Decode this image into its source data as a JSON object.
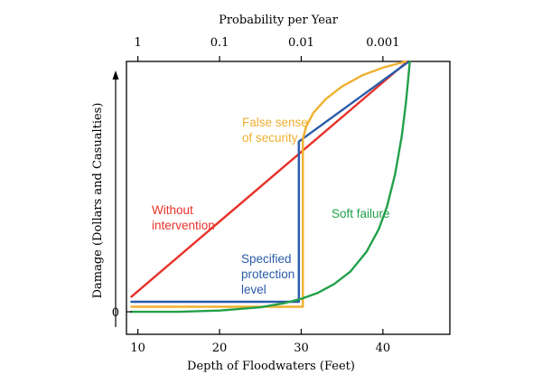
{
  "chart_data": {
    "type": "line",
    "title": "",
    "top_axis": {
      "label": "Probability per Year",
      "ticks": [
        {
          "label": "1",
          "x": 10
        },
        {
          "label": "0.1",
          "x": 20
        },
        {
          "label": "0.01",
          "x": 30
        },
        {
          "label": "0.001",
          "x": 40
        }
      ]
    },
    "xlabel": "Depth of Floodwaters (Feet)",
    "ylabel": "Damage (Dollars and Casualties)",
    "xticks": [
      10,
      20,
      30,
      40
    ],
    "yticks": [
      {
        "label": "0",
        "y": 0
      }
    ],
    "xlim": [
      8.6,
      48.2
    ],
    "ylim": [
      -0.09,
      1.0
    ],
    "series": [
      {
        "name": "Without intervention",
        "color": "#e8322a",
        "label_lines": [
          "Without",
          "intervention"
        ],
        "points": [
          [
            9.2,
            0.06
          ],
          [
            43.0,
            1.0
          ]
        ]
      },
      {
        "name": "Specified protection level",
        "color": "#2a5ca8",
        "label_lines": [
          "Specified",
          "protection",
          "level"
        ],
        "points": [
          [
            9.2,
            0.04
          ],
          [
            29.7,
            0.04
          ],
          [
            29.7,
            0.68
          ],
          [
            43.2,
            1.0
          ]
        ]
      },
      {
        "name": "False sense of security",
        "color": "#f0b030",
        "label_lines": [
          "False sense",
          "of security"
        ],
        "points": [
          [
            9.2,
            0.02
          ],
          [
            30.2,
            0.02
          ],
          [
            30.2,
            0.69
          ],
          [
            30.6,
            0.74
          ],
          [
            31.5,
            0.795
          ],
          [
            33,
            0.85
          ],
          [
            35,
            0.9
          ],
          [
            37.5,
            0.945
          ],
          [
            40,
            0.975
          ],
          [
            42.8,
            1.0
          ]
        ]
      },
      {
        "name": "Soft failure",
        "color": "#22a04a",
        "label_lines": [
          "Soft failure"
        ],
        "points": [
          [
            9.2,
            0.0
          ],
          [
            15,
            0.0
          ],
          [
            20,
            0.005
          ],
          [
            25,
            0.018
          ],
          [
            28,
            0.035
          ],
          [
            30,
            0.052
          ],
          [
            32,
            0.075
          ],
          [
            34,
            0.11
          ],
          [
            36,
            0.16
          ],
          [
            38,
            0.24
          ],
          [
            39.5,
            0.33
          ],
          [
            40.5,
            0.42
          ],
          [
            41.5,
            0.55
          ],
          [
            42.3,
            0.7
          ],
          [
            42.8,
            0.83
          ],
          [
            43.1,
            0.93
          ],
          [
            43.3,
            1.0
          ]
        ]
      }
    ]
  }
}
